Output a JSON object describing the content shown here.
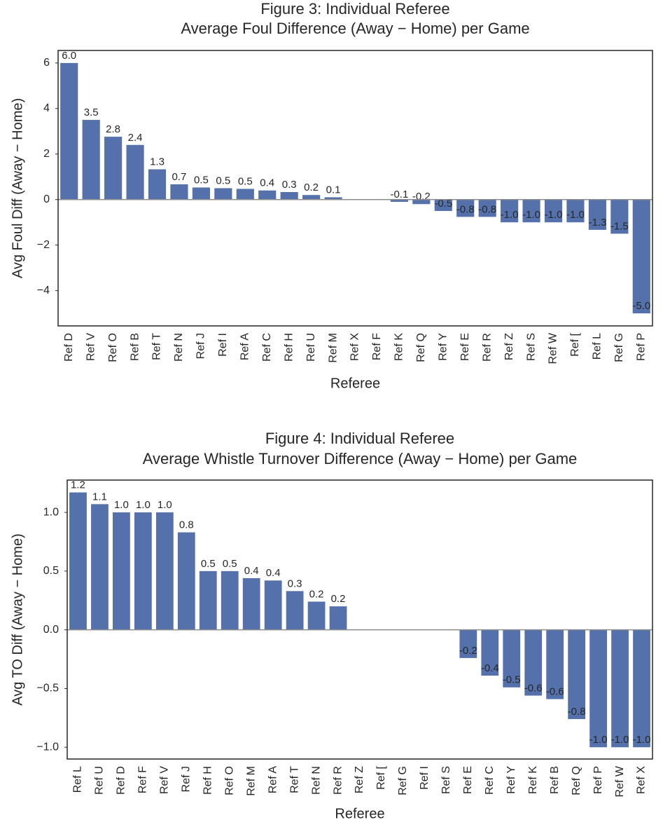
{
  "chart_data": [
    {
      "type": "bar",
      "title": "Figure 3: Individual Referee",
      "subtitle": "Average Foul Difference (Away − Home) per Game",
      "x_label": "Referee",
      "y_label": "Avg Foul Diff (Away − Home)",
      "color": "#5471ab",
      "categories": [
        "Ref D",
        "Ref V",
        "Ref O",
        "Ref B",
        "Ref T",
        "Ref N",
        "Ref J",
        "Ref I",
        "Ref A",
        "Ref C",
        "Ref H",
        "Ref U",
        "Ref M",
        "Ref X",
        "Ref F",
        "Ref K",
        "Ref Q",
        "Ref Y",
        "Ref E",
        "Ref R",
        "Ref Z",
        "Ref S",
        "Ref W",
        "Ref [",
        "Ref L",
        "Ref G",
        "Ref P"
      ],
      "values": [
        6.0,
        3.5,
        2.76,
        2.4,
        1.33,
        0.67,
        0.53,
        0.5,
        0.47,
        0.4,
        0.33,
        0.2,
        0.1,
        0,
        0,
        -0.1,
        -0.2,
        -0.5,
        -0.76,
        -0.76,
        -1.0,
        -1.0,
        -1.0,
        -1.0,
        -1.33,
        -1.5,
        -5.0
      ],
      "value_labels": [
        "6.0",
        "3.5",
        "2.8",
        "2.4",
        "1.3",
        "0.7",
        "0.5",
        "0.5",
        "0.5",
        "0.4",
        "0.3",
        "0.2",
        "0.1",
        null,
        null,
        "-0.1",
        "-0.2",
        "-0.5",
        "-0.8",
        "-0.8",
        "-1.0",
        "-1.0",
        "-1.0",
        "-1.0",
        "-1.3",
        "-1.5",
        "-5.0"
      ],
      "ylim": [
        -5.55,
        6.55
      ],
      "yticks": [
        {
          "value": -4,
          "label": "−4"
        },
        {
          "value": -2,
          "label": "−2"
        },
        0,
        2,
        4,
        6
      ]
    },
    {
      "type": "bar",
      "title": "Figure 4: Individual Referee",
      "subtitle": "Average Whistle Turnover Difference (Away − Home) per Game",
      "x_label": "Referee",
      "y_label": "Avg TO Diff (Away − Home)",
      "color": "#5471ab",
      "categories": [
        "Ref L",
        "Ref U",
        "Ref D",
        "Ref F",
        "Ref V",
        "Ref J",
        "Ref H",
        "Ref O",
        "Ref M",
        "Ref A",
        "Ref T",
        "Ref N",
        "Ref R",
        "Ref Z",
        "Ref [",
        "Ref G",
        "Ref I",
        "Ref S",
        "Ref E",
        "Ref C",
        "Ref Y",
        "Ref K",
        "Ref B",
        "Ref Q",
        "Ref P",
        "Ref W",
        "Ref X"
      ],
      "values": [
        1.17,
        1.07,
        1.0,
        1.0,
        1.0,
        0.83,
        0.5,
        0.5,
        0.44,
        0.42,
        0.33,
        0.24,
        0.2,
        0,
        0,
        0,
        0,
        0,
        -0.24,
        -0.39,
        -0.49,
        -0.56,
        -0.59,
        -0.76,
        -1.0,
        -1.0,
        -1.0
      ],
      "value_labels": [
        "1.2",
        "1.1",
        "1.0",
        "1.0",
        "1.0",
        "0.8",
        "0.5",
        "0.5",
        "0.4",
        "0.4",
        "0.3",
        "0.2",
        "0.2",
        null,
        null,
        null,
        null,
        null,
        "-0.2",
        "-0.4",
        "-0.5",
        "-0.6",
        "-0.6",
        "-0.8",
        "-1.0",
        "-1.0",
        "-1.0"
      ],
      "ylim": [
        -1.1,
        1.275
      ],
      "yticks": [
        {
          "value": -1.0,
          "label": "−1.0"
        },
        {
          "value": -0.5,
          "label": "−0.5"
        },
        {
          "value": 0,
          "label": "0.0"
        },
        0.5,
        {
          "value": 1.0,
          "label": "1.0"
        }
      ]
    }
  ]
}
